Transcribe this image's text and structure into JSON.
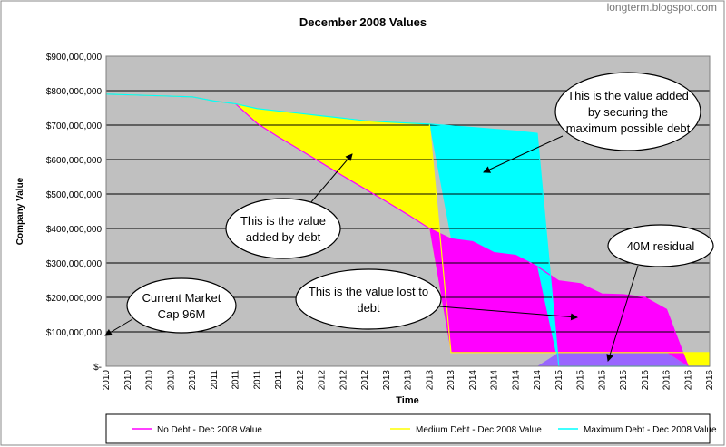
{
  "chart_data": {
    "type": "area-diff",
    "title": "December 2008 Values",
    "watermark": "longterm.blogspot.com",
    "x_label": "Time",
    "y_label": "Company Value",
    "categories": [
      "2010",
      "2010",
      "2010",
      "2010",
      "2010",
      "2011",
      "2011",
      "2011",
      "2011",
      "2012",
      "2012",
      "2012",
      "2012",
      "2013",
      "2013",
      "2013",
      "2013",
      "2014",
      "2014",
      "2014",
      "2014",
      "2015",
      "2015",
      "2015",
      "2015",
      "2016",
      "2016",
      "2016",
      "2016"
    ],
    "ylim": [
      0,
      900000000
    ],
    "yticks": [
      {
        "value": 0,
        "label": "$-"
      },
      {
        "value": 100000000,
        "label": "$100,000,000"
      },
      {
        "value": 200000000,
        "label": "$200,000,000"
      },
      {
        "value": 300000000,
        "label": "$300,000,000"
      },
      {
        "value": 400000000,
        "label": "$400,000,000"
      },
      {
        "value": 500000000,
        "label": "$500,000,000"
      },
      {
        "value": 600000000,
        "label": "$600,000,000"
      },
      {
        "value": 700000000,
        "label": "$700,000,000"
      },
      {
        "value": 800000000,
        "label": "$800,000,000"
      },
      {
        "value": 900000000,
        "label": "$900,000,000"
      }
    ],
    "grid": true,
    "legend": "bottom",
    "series": [
      {
        "name": "No Debt - Dec 2008 Value",
        "color": "#ff00ff",
        "values": [
          790000000,
          788000000,
          786000000,
          784000000,
          782000000,
          770000000,
          762000000,
          705000000,
          665000000,
          628000000,
          590000000,
          552000000,
          515000000,
          478000000,
          440000000,
          400000000,
          370000000,
          362000000,
          330000000,
          322000000,
          290000000,
          248000000,
          240000000,
          210000000,
          208000000,
          200000000,
          165000000,
          0,
          0
        ]
      },
      {
        "name": "Medium Debt - Dec 2008 Value",
        "color": "#ffff00",
        "values": [
          790000000,
          788000000,
          786000000,
          784000000,
          782000000,
          770000000,
          762000000,
          748000000,
          741000000,
          734000000,
          727000000,
          720000000,
          713000000,
          709000000,
          706000000,
          703000000,
          40000000,
          40000000,
          40000000,
          40000000,
          40000000,
          40000000,
          40000000,
          40000000,
          40000000,
          40000000,
          40000000,
          40000000,
          40000000
        ]
      },
      {
        "name": "Maximum Debt - Dec 2008 Value",
        "color": "#00ffff",
        "values": [
          790000000,
          788000000,
          786000000,
          784000000,
          782000000,
          770000000,
          762000000,
          748000000,
          741000000,
          734000000,
          727000000,
          720000000,
          713000000,
          709000000,
          706000000,
          703000000,
          698000000,
          693000000,
          688000000,
          683000000,
          676000000,
          0,
          0,
          0,
          0,
          0,
          0,
          0,
          0
        ]
      }
    ],
    "residual_color": "#9966ff",
    "annotations": [
      {
        "lines": [
          "This is the value added",
          "by securing the",
          "maximum possible debt"
        ]
      },
      {
        "lines": [
          "This is the value",
          "added by debt"
        ]
      },
      {
        "lines": [
          "40M residual"
        ]
      },
      {
        "lines": [
          "This is the value lost to",
          "debt"
        ]
      },
      {
        "lines": [
          "Current Market",
          "Cap 96M"
        ]
      }
    ]
  }
}
